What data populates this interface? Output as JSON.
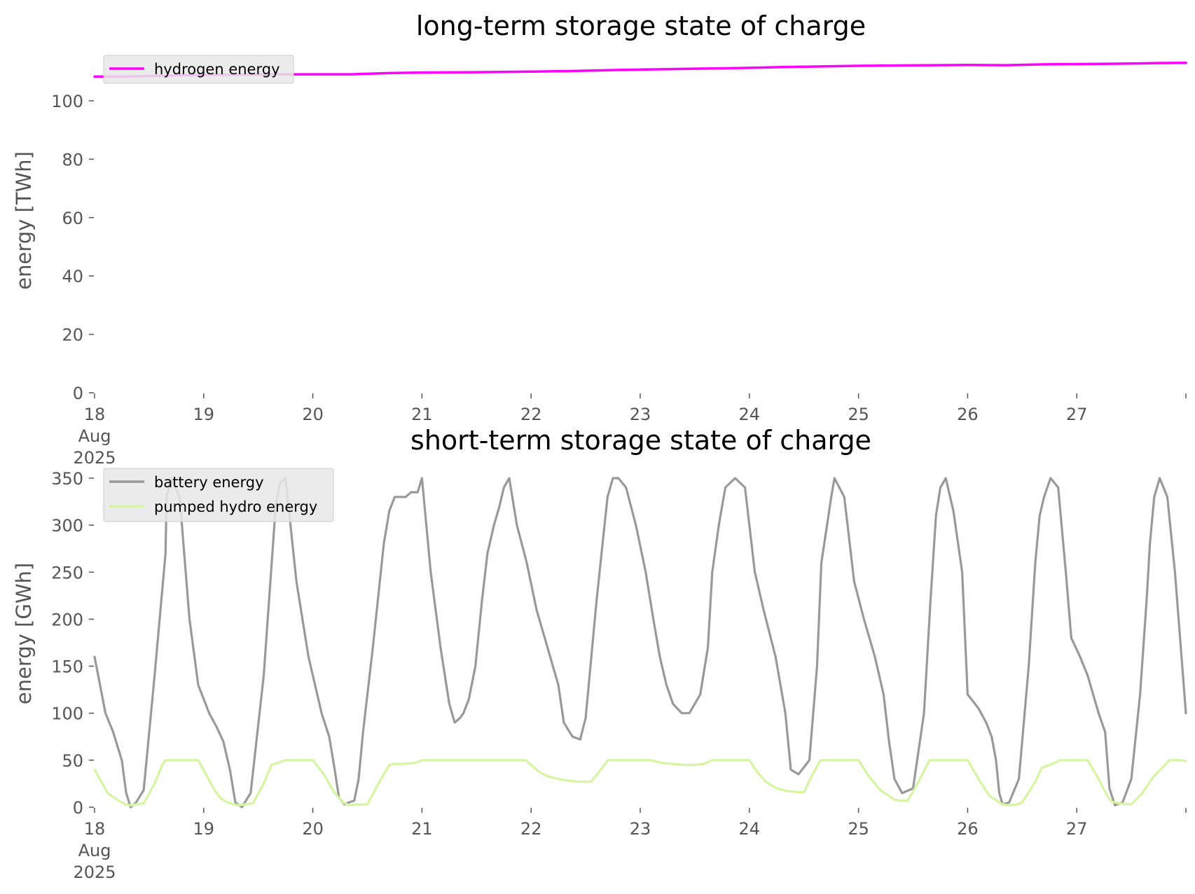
{
  "chart_data": [
    {
      "type": "line",
      "title": "long-term storage state of charge",
      "xlabel": "",
      "ylabel": "energy [TWh]",
      "ylim": [
        0,
        113
      ],
      "y_ticks": [
        "0",
        "20",
        "40",
        "60",
        "80",
        "100"
      ],
      "x_tick_labels": [
        "18\nAug\n2025",
        "19",
        "20",
        "21",
        "22",
        "23",
        "24",
        "25",
        "26",
        "27",
        ""
      ],
      "xlim_days": [
        0,
        10
      ],
      "grid": false,
      "legend_placement": "top-left",
      "series": [
        {
          "name": "hydrogen energy",
          "color": "#ff00ff",
          "x": [
            0,
            0.3,
            0.7,
            1.0,
            1.5,
            2.0,
            2.35,
            2.7,
            3.0,
            3.5,
            4.0,
            4.35,
            4.7,
            5.0,
            5.35,
            5.7,
            6.0,
            6.35,
            6.7,
            7.0,
            7.35,
            7.7,
            8.0,
            8.35,
            8.7,
            9.0,
            9.35,
            9.7,
            10.0
          ],
          "y": [
            108.3,
            108.3,
            108.7,
            108.9,
            109.0,
            109.1,
            109.1,
            109.5,
            109.7,
            109.8,
            110.0,
            110.2,
            110.5,
            110.7,
            110.9,
            111.1,
            111.3,
            111.6,
            111.8,
            112.0,
            112.1,
            112.2,
            112.3,
            112.2,
            112.5,
            112.6,
            112.7,
            112.9,
            113.0
          ]
        }
      ]
    },
    {
      "type": "line",
      "title": "short-term storage state of charge",
      "xlabel": "",
      "ylabel": "energy [GWh]",
      "ylim": [
        0,
        350
      ],
      "y_ticks": [
        "0",
        "50",
        "100",
        "150",
        "200",
        "250",
        "300",
        "350"
      ],
      "x_tick_labels": [
        "18\nAug\n2025",
        "19",
        "20",
        "21",
        "22",
        "23",
        "24",
        "25",
        "26",
        "27",
        ""
      ],
      "xlim_days": [
        0,
        10
      ],
      "grid": false,
      "legend_placement": "top-left",
      "series": [
        {
          "name": "battery energy",
          "color": "#999999",
          "x": [
            0,
            0.1,
            0.17,
            0.25,
            0.29,
            0.33,
            0.38,
            0.45,
            0.55,
            0.65,
            0.66,
            0.7,
            0.78,
            0.87,
            0.95,
            1.05,
            1.12,
            1.18,
            1.24,
            1.29,
            1.35,
            1.43,
            1.55,
            1.66,
            1.7,
            1.75,
            1.85,
            1.96,
            2.08,
            2.15,
            2.2,
            2.24,
            2.29,
            2.33,
            2.38,
            2.42,
            2.46,
            2.55,
            2.65,
            2.7,
            2.75,
            2.85,
            2.9,
            2.96,
            3.0,
            3.08,
            3.17,
            3.25,
            3.3,
            3.35,
            3.38,
            3.43,
            3.49,
            3.55,
            3.6,
            3.66,
            3.71,
            3.75,
            3.8,
            3.87,
            3.96,
            4.05,
            4.15,
            4.25,
            4.3,
            4.38,
            4.45,
            4.5,
            4.6,
            4.7,
            4.75,
            4.8,
            4.87,
            4.96,
            5.05,
            5.12,
            5.18,
            5.24,
            5.3,
            5.38,
            5.45,
            5.55,
            5.62,
            5.66,
            5.72,
            5.78,
            5.87,
            5.96,
            6.05,
            6.13,
            6.24,
            6.33,
            6.38,
            6.45,
            6.55,
            6.62,
            6.66,
            6.75,
            6.78,
            6.87,
            6.96,
            7.05,
            7.15,
            7.23,
            7.28,
            7.33,
            7.4,
            7.5,
            7.6,
            7.66,
            7.71,
            7.75,
            7.8,
            7.87,
            7.95,
            8.0,
            8.1,
            8.17,
            8.22,
            8.26,
            8.29,
            8.32,
            8.38,
            8.47,
            8.56,
            8.62,
            8.66,
            8.7,
            8.76,
            8.83,
            8.9,
            8.95,
            9.03,
            9.1,
            9.15,
            9.2,
            9.26,
            9.3,
            9.35,
            9.42,
            9.5,
            9.58,
            9.64,
            9.67,
            9.71,
            9.76,
            9.83,
            9.9,
            10.0
          ],
          "y": [
            160,
            100,
            80,
            50,
            15,
            0,
            5,
            18,
            140,
            270,
            330,
            350,
            330,
            200,
            130,
            100,
            85,
            70,
            40,
            5,
            0,
            15,
            140,
            320,
            345,
            350,
            240,
            160,
            100,
            75,
            40,
            10,
            3,
            5,
            7,
            30,
            80,
            170,
            280,
            315,
            330,
            330,
            335,
            335,
            350,
            250,
            170,
            110,
            90,
            95,
            100,
            115,
            150,
            220,
            270,
            300,
            320,
            340,
            350,
            300,
            260,
            210,
            170,
            130,
            90,
            75,
            72,
            95,
            220,
            330,
            350,
            350,
            340,
            300,
            250,
            200,
            160,
            130,
            110,
            100,
            100,
            120,
            170,
            250,
            300,
            340,
            350,
            340,
            250,
            210,
            160,
            100,
            40,
            35,
            50,
            150,
            260,
            330,
            350,
            330,
            240,
            200,
            160,
            120,
            70,
            30,
            15,
            20,
            100,
            220,
            310,
            340,
            350,
            315,
            250,
            120,
            105,
            90,
            75,
            50,
            15,
            3,
            5,
            30,
            150,
            260,
            310,
            330,
            350,
            340,
            250,
            180,
            160,
            140,
            120,
            100,
            80,
            20,
            2,
            5,
            30,
            120,
            220,
            280,
            330,
            350,
            330,
            250,
            100
          ]
        },
        {
          "name": "pumped hydro energy",
          "color": "#d5f5a0",
          "x": [
            0,
            0.12,
            0.22,
            0.28,
            0.33,
            0.38,
            0.45,
            0.55,
            0.62,
            0.65,
            0.75,
            0.85,
            0.95,
            1.02,
            1.1,
            1.15,
            1.22,
            1.28,
            1.32,
            1.38,
            1.45,
            1.55,
            1.62,
            1.75,
            1.85,
            1.95,
            2.0,
            2.1,
            2.2,
            2.28,
            2.33,
            2.4,
            2.5,
            2.6,
            2.7,
            2.75,
            2.83,
            2.92,
            2.96,
            3.0,
            3.1,
            3.2,
            3.3,
            3.4,
            3.5,
            3.6,
            3.7,
            3.8,
            3.9,
            3.95,
            4.0,
            4.08,
            4.15,
            4.25,
            4.35,
            4.45,
            4.55,
            4.62,
            4.7,
            4.8,
            4.9,
            5.0,
            5.1,
            5.2,
            5.3,
            5.4,
            5.5,
            5.58,
            5.66,
            5.75,
            5.85,
            5.95,
            6.0,
            6.08,
            6.15,
            6.25,
            6.35,
            6.45,
            6.5,
            6.58,
            6.65,
            6.75,
            6.85,
            6.95,
            7.0,
            7.1,
            7.2,
            7.28,
            7.33,
            7.38,
            7.45,
            7.55,
            7.65,
            7.7,
            7.8,
            7.9,
            7.95,
            8.0,
            8.1,
            8.2,
            8.28,
            8.32,
            8.38,
            8.45,
            8.5,
            8.62,
            8.68,
            8.75,
            8.85,
            8.95,
            9.0,
            9.1,
            9.2,
            9.28,
            9.32,
            9.38,
            9.5,
            9.6,
            9.7,
            9.75,
            9.85,
            9.95,
            10.0
          ],
          "y": [
            40,
            15,
            7,
            3,
            2,
            3,
            4,
            25,
            45,
            50,
            50,
            50,
            50,
            35,
            18,
            10,
            5,
            3,
            2,
            3,
            4,
            25,
            45,
            50,
            50,
            50,
            50,
            35,
            15,
            5,
            2,
            3,
            3,
            25,
            45,
            46,
            46,
            47,
            48,
            50,
            50,
            50,
            50,
            50,
            50,
            50,
            50,
            50,
            50,
            50,
            45,
            37,
            33,
            30,
            28,
            27,
            27,
            37,
            50,
            50,
            50,
            50,
            50,
            47,
            46,
            45,
            45,
            46,
            50,
            50,
            50,
            50,
            50,
            36,
            27,
            20,
            17,
            16,
            16,
            35,
            50,
            50,
            50,
            50,
            50,
            32,
            18,
            12,
            8,
            7,
            7,
            27,
            50,
            50,
            50,
            50,
            50,
            50,
            30,
            12,
            6,
            3,
            2,
            3,
            5,
            27,
            42,
            45,
            50,
            50,
            50,
            50,
            30,
            12,
            6,
            4,
            3,
            15,
            32,
            38,
            50,
            50,
            49
          ]
        }
      ]
    }
  ]
}
